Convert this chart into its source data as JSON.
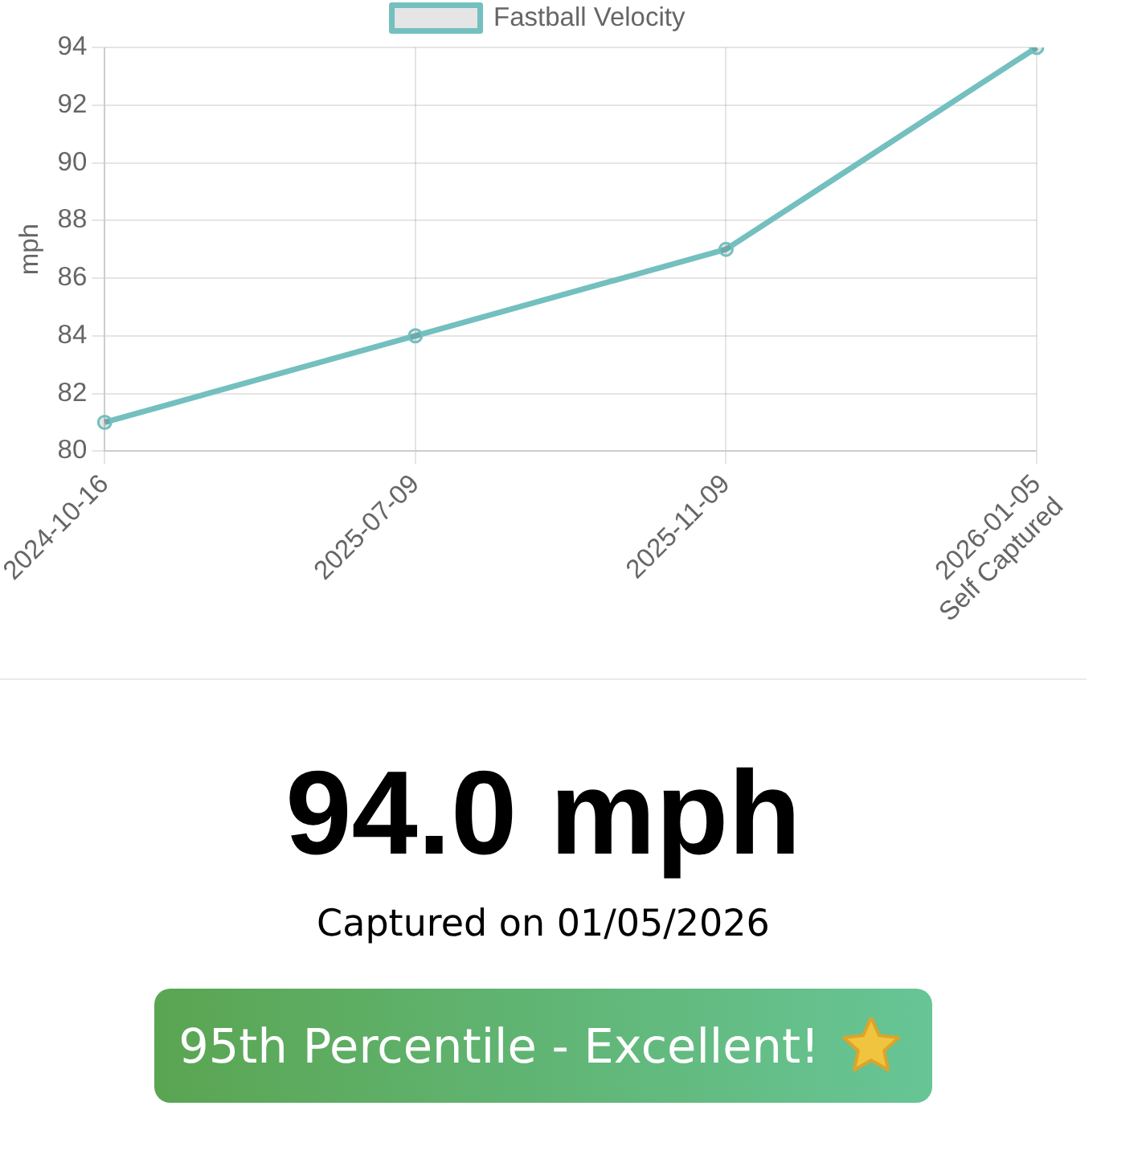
{
  "chart_data": [
    {
      "type": "line",
      "categories": [
        "2024-10-16",
        "2025-07-09",
        "2025-11-09",
        "2026-01-05\nSelf Captured"
      ],
      "series": [
        {
          "name": "Fastball Velocity",
          "color": "#74bfbf",
          "values": [
            81,
            84,
            87,
            94
          ]
        }
      ],
      "ylabel": "mph",
      "ylim": [
        80,
        94
      ],
      "yticks": [
        80,
        82,
        84,
        86,
        88,
        90,
        92,
        94
      ],
      "grid": true,
      "legend": "top",
      "marker": "circle"
    },
    {
      "type": "other",
      "title": "94.0 mph",
      "subtitle": "Captured on 01/05/2026",
      "annotations": [
        "95th Percentile - Excellent!"
      ]
    }
  ]
}
